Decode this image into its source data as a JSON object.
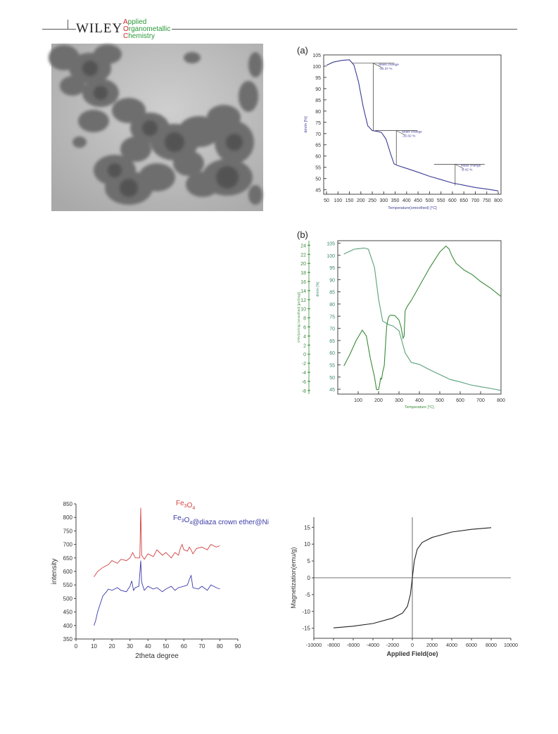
{
  "header": {
    "publisher": "WILEY",
    "journal_lines": [
      "Applied",
      "Organometallic",
      "Chemistry"
    ],
    "journal_initials": [
      "A",
      "O",
      "C"
    ]
  },
  "panels": {
    "a_label": "(a)",
    "b_label": "(b)"
  },
  "colors": {
    "tga": "#3c3c96",
    "dta": "#3a8a3a",
    "xrd_fe3o4": "#d04040",
    "xrd_composite": "#3a3aa8",
    "vsm": "#222222",
    "accent_red": "#d62828",
    "accent_green": "#2a9a3a"
  },
  "chart_data": [
    {
      "type": "line",
      "id": "tga_a",
      "xlabel": "Temperature(smoothed) [°C]",
      "ylabel": "dm/m [%]",
      "xlim": [
        50,
        800
      ],
      "ylim": [
        43,
        105
      ],
      "xticks": [
        50,
        100,
        150,
        200,
        250,
        300,
        350,
        400,
        450,
        500,
        550,
        600,
        650,
        700,
        750,
        800
      ],
      "yticks": [
        45,
        50,
        55,
        60,
        65,
        70,
        75,
        80,
        85,
        90,
        95,
        100,
        105
      ],
      "series": [
        {
          "x": [
            50,
            80,
            120,
            150,
            170,
            190,
            210,
            230,
            250,
            270,
            290,
            310,
            330,
            345,
            360,
            400,
            450,
            500,
            550,
            600,
            650,
            700,
            750,
            800
          ],
          "y": [
            100.4,
            101.8,
            102.6,
            102.8,
            100.5,
            93,
            82,
            73.5,
            71.3,
            71,
            70.5,
            67.5,
            61,
            56.5,
            55.8,
            54.5,
            52.8,
            51,
            49.5,
            48,
            47,
            46,
            45.3,
            44.5
          ]
        }
      ],
      "annotations": [
        {
          "text1": "Mass change",
          "text2": "-30.37 %",
          "x": 254,
          "y_top": 101.3,
          "y_bottom": 71.3
        },
        {
          "text1": "Mass change",
          "text2": "-15.02 %",
          "x": 355,
          "y_top": 71.3,
          "y_bottom": 56.3
        },
        {
          "text1": "Mass change",
          "text2": "-9.42 %",
          "x": 612,
          "y_top": 56.3,
          "y_bottom": 46.9
        }
      ]
    },
    {
      "type": "line",
      "id": "tga_dta_b",
      "xlabel": "Temperature [°C]",
      "ylabel_left": "DTA/(uV/mg) (smoothed) [µV/(mg)]",
      "ylabel_right": "dm/m [%]",
      "xlim": [
        0,
        800
      ],
      "xticks": [
        100,
        200,
        300,
        400,
        500,
        600,
        700,
        800
      ],
      "left_ticks": [
        24,
        22,
        20,
        18,
        16,
        14,
        12,
        10,
        8,
        6,
        4,
        2,
        0,
        -2,
        -4,
        -6,
        -8
      ],
      "right_ticks": [
        105,
        100,
        95,
        90,
        85,
        80,
        75,
        70,
        65,
        60,
        55,
        50,
        45
      ],
      "left_range": [
        -8.8,
        25
      ],
      "right_range": [
        43,
        106
      ],
      "series": [
        {
          "name": "dm/m",
          "axis": "right",
          "x": [
            30,
            80,
            130,
            150,
            180,
            200,
            220,
            250,
            270,
            300,
            330,
            360,
            400,
            450,
            500,
            550,
            600,
            650,
            700,
            750,
            800
          ],
          "y": [
            100.5,
            102.5,
            103,
            102.5,
            95,
            82,
            73,
            71.5,
            71,
            69,
            60,
            56,
            55.2,
            53,
            51,
            49,
            48,
            46.8,
            46,
            45.3,
            44.5
          ]
        },
        {
          "name": "DTA",
          "axis": "left",
          "x": [
            30,
            60,
            90,
            120,
            140,
            160,
            180,
            190,
            200,
            205,
            210,
            215,
            220,
            228,
            235,
            240,
            245,
            250,
            255,
            260,
            280,
            300,
            310,
            320,
            325,
            330,
            340,
            360,
            400,
            450,
            500,
            530,
            545,
            560,
            580,
            620,
            660,
            700,
            750,
            800
          ],
          "y": [
            -2.6,
            0,
            3,
            5.3,
            4,
            -1,
            -5,
            -7.8,
            -7.8,
            -6.8,
            -5.3,
            -5.5,
            -4,
            -2.5,
            3,
            6.2,
            7.5,
            8.2,
            8.5,
            8.6,
            8.5,
            7.5,
            6,
            3.5,
            4,
            9.5,
            10.5,
            11.8,
            15,
            19,
            22.5,
            23.8,
            23.2,
            21.6,
            20,
            18.5,
            17.5,
            16,
            14.5,
            12.7
          ]
        }
      ]
    },
    {
      "type": "line",
      "id": "xrd",
      "xlabel": "2theta degree",
      "ylabel": "intensity",
      "xlim": [
        0,
        90
      ],
      "ylim": [
        350,
        850
      ],
      "xticks": [
        0,
        10,
        20,
        30,
        40,
        50,
        60,
        70,
        80,
        90
      ],
      "yticks": [
        350,
        400,
        450,
        500,
        550,
        600,
        650,
        700,
        750,
        800,
        850
      ],
      "legend": [
        "Fe3O4",
        "Fe3O4@diaza crown ether@Ni"
      ],
      "series": [
        {
          "name": "Fe3O4",
          "x": [
            10,
            12,
            15,
            18,
            20,
            23,
            25,
            28,
            30,
            31.5,
            33,
            35.5,
            36,
            36.5,
            38,
            40,
            43,
            45,
            48,
            50,
            53,
            55,
            57,
            58,
            59,
            60,
            62,
            63,
            64,
            65,
            67,
            70,
            73,
            75,
            78,
            80
          ],
          "y": [
            580,
            600,
            615,
            625,
            640,
            630,
            645,
            640,
            650,
            670,
            650,
            650,
            835,
            660,
            645,
            665,
            655,
            680,
            660,
            670,
            650,
            670,
            660,
            685,
            700,
            680,
            675,
            690,
            680,
            665,
            685,
            690,
            680,
            700,
            690,
            695
          ]
        },
        {
          "name": "Fe3O4@diaza crown ether@Ni",
          "x": [
            10,
            11,
            12,
            13,
            15,
            17,
            18,
            20,
            23,
            25,
            28,
            30,
            31,
            32,
            33,
            35,
            36,
            36.5,
            38,
            40,
            43,
            45,
            48,
            50,
            53,
            55,
            57,
            60,
            62,
            63,
            64,
            65,
            68,
            70,
            73,
            75,
            78,
            80
          ],
          "y": [
            400,
            420,
            450,
            470,
            510,
            525,
            535,
            530,
            540,
            530,
            525,
            545,
            565,
            530,
            540,
            545,
            640,
            560,
            530,
            545,
            535,
            540,
            525,
            535,
            545,
            530,
            540,
            545,
            550,
            570,
            585,
            540,
            535,
            545,
            530,
            550,
            540,
            535
          ]
        }
      ]
    },
    {
      "type": "line",
      "id": "vsm",
      "xlabel": "Applied Field(oe)",
      "ylabel": "Magnetization(emu/g)",
      "xlim": [
        -10000,
        10000
      ],
      "ylim": [
        -18,
        18
      ],
      "xticks": [
        -10000,
        -8000,
        -6000,
        -4000,
        -2000,
        0,
        2000,
        4000,
        6000,
        8000,
        10000
      ],
      "yticks": [
        -15,
        -10,
        -5,
        0,
        5,
        10,
        15
      ],
      "series": [
        {
          "x": [
            -8000,
            -6000,
            -4000,
            -2000,
            -1000,
            -500,
            -200,
            0,
            200,
            500,
            1000,
            2000,
            4000,
            6000,
            8000
          ],
          "y": [
            -14.9,
            -14.4,
            -13.6,
            -12,
            -10.5,
            -8.5,
            -5,
            0,
            5,
            8.5,
            10.5,
            12,
            13.6,
            14.4,
            14.9
          ]
        }
      ]
    }
  ]
}
